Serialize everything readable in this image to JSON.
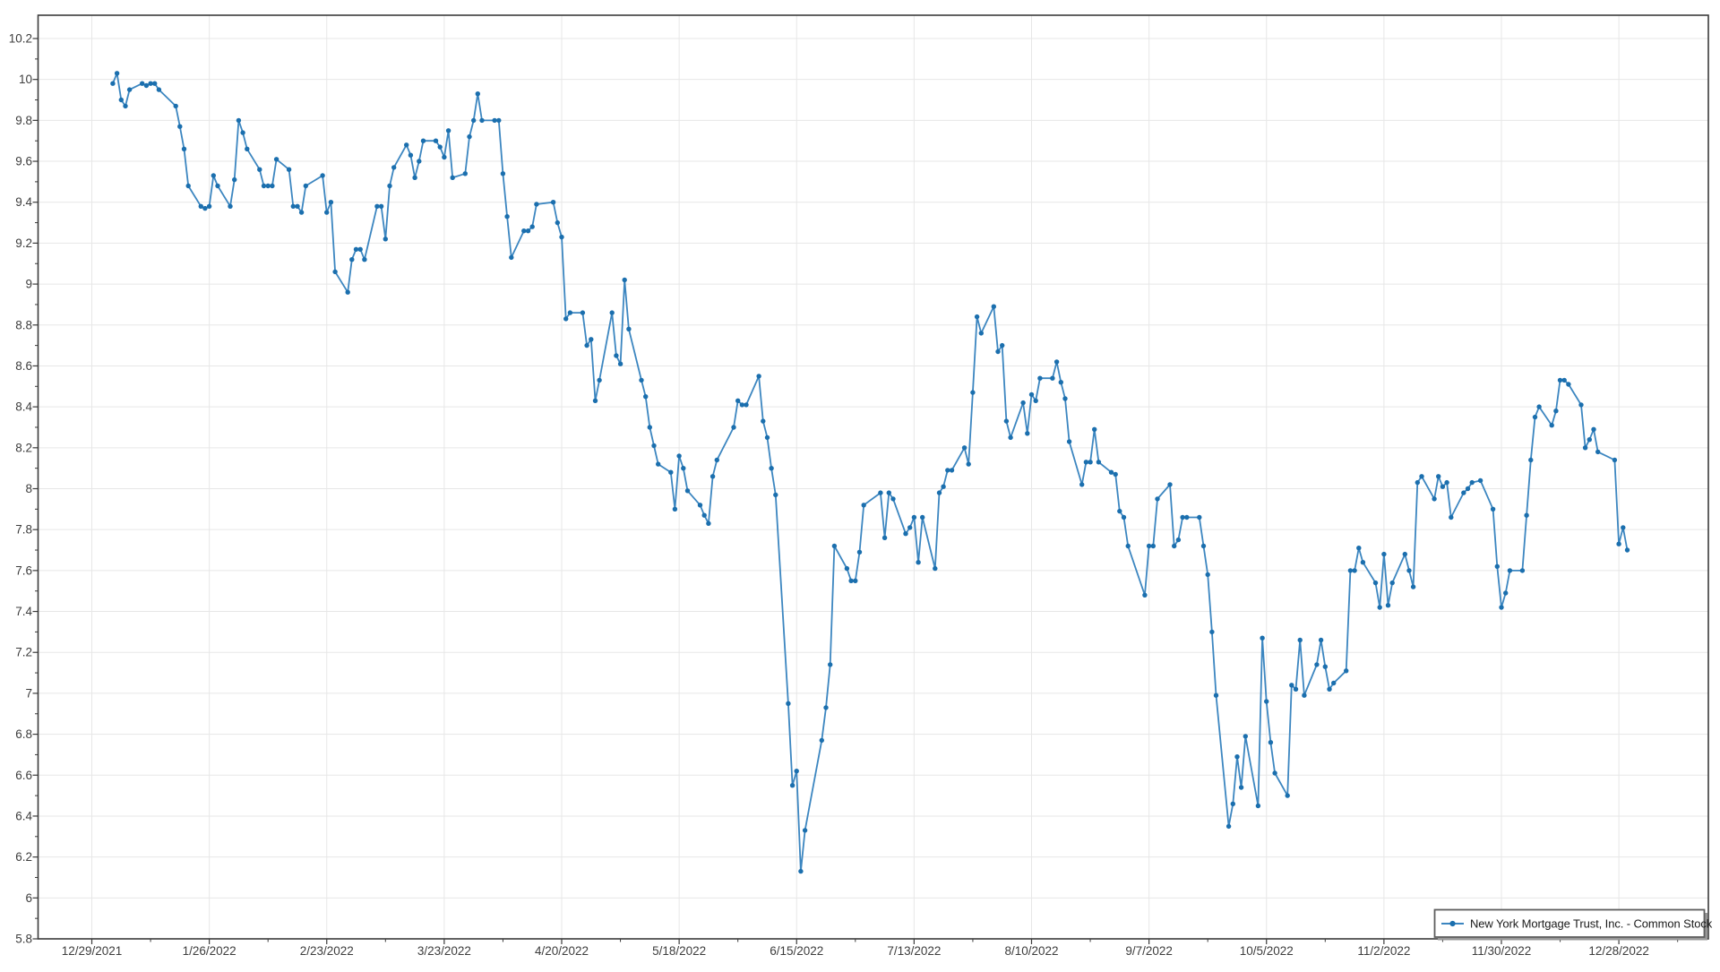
{
  "chart_data": {
    "type": "line",
    "title": "",
    "legend_position": "bottom-right",
    "grid": true,
    "series": [
      {
        "name": "New York Mortgage Trust, Inc. - Common Stock",
        "dates": [
          "1/3",
          "1/4",
          "1/5",
          "1/6",
          "1/7",
          "1/10",
          "1/11",
          "1/12",
          "1/13",
          "1/14",
          "1/18",
          "1/19",
          "1/20",
          "1/21",
          "1/24",
          "1/25",
          "1/26",
          "1/27",
          "1/28",
          "1/31",
          "2/1",
          "2/2",
          "2/3",
          "2/4",
          "2/7",
          "2/8",
          "2/9",
          "2/10",
          "2/11",
          "2/14",
          "2/15",
          "2/16",
          "2/17",
          "2/18",
          "2/22",
          "2/23",
          "2/24",
          "2/25",
          "2/28",
          "3/1",
          "3/2",
          "3/3",
          "3/4",
          "3/7",
          "3/8",
          "3/9",
          "3/10",
          "3/11",
          "3/14",
          "3/15",
          "3/16",
          "3/17",
          "3/18",
          "3/21",
          "3/22",
          "3/23",
          "3/24",
          "3/25",
          "3/28",
          "3/29",
          "3/30",
          "3/31",
          "4/1",
          "4/4",
          "4/5",
          "4/6",
          "4/7",
          "4/8",
          "4/11",
          "4/12",
          "4/13",
          "4/14",
          "4/18",
          "4/19",
          "4/20",
          "4/21",
          "4/22",
          "4/25",
          "4/26",
          "4/27",
          "4/28",
          "4/29",
          "5/2",
          "5/3",
          "5/4",
          "5/5",
          "5/6",
          "5/9",
          "5/10",
          "5/11",
          "5/12",
          "5/13",
          "5/16",
          "5/17",
          "5/18",
          "5/19",
          "5/20",
          "5/23",
          "5/24",
          "5/25",
          "5/26",
          "5/27",
          "5/31",
          "6/1",
          "6/2",
          "6/3",
          "6/6",
          "6/7",
          "6/8",
          "6/9",
          "6/10",
          "6/13",
          "6/14",
          "6/15",
          "6/16",
          "6/17",
          "6/21",
          "6/22",
          "6/23",
          "6/24",
          "6/27",
          "6/28",
          "6/29",
          "6/30",
          "7/1",
          "7/5",
          "7/6",
          "7/7",
          "7/8",
          "7/11",
          "7/12",
          "7/13",
          "7/14",
          "7/15",
          "7/18",
          "7/19",
          "7/20",
          "7/21",
          "7/22",
          "7/25",
          "7/26",
          "7/27",
          "7/28",
          "7/29",
          "8/1",
          "8/2",
          "8/3",
          "8/4",
          "8/5",
          "8/8",
          "8/9",
          "8/10",
          "8/11",
          "8/12",
          "8/15",
          "8/16",
          "8/17",
          "8/18",
          "8/19",
          "8/22",
          "8/23",
          "8/24",
          "8/25",
          "8/26",
          "8/29",
          "8/30",
          "8/31",
          "9/1",
          "9/2",
          "9/6",
          "9/7",
          "9/8",
          "9/9",
          "9/12",
          "9/13",
          "9/14",
          "9/15",
          "9/16",
          "9/19",
          "9/20",
          "9/21",
          "9/22",
          "9/23",
          "9/26",
          "9/27",
          "9/28",
          "9/29",
          "9/30",
          "10/3",
          "10/4",
          "10/5",
          "10/6",
          "10/7",
          "10/10",
          "10/11",
          "10/12",
          "10/13",
          "10/14",
          "10/17",
          "10/18",
          "10/19",
          "10/20",
          "10/21",
          "10/24",
          "10/25",
          "10/26",
          "10/27",
          "10/28",
          "10/31",
          "11/1",
          "11/2",
          "11/3",
          "11/4",
          "11/7",
          "11/8",
          "11/9",
          "11/10",
          "11/11",
          "11/14",
          "11/15",
          "11/16",
          "11/17",
          "11/18",
          "11/21",
          "11/22",
          "11/23",
          "11/25",
          "11/28",
          "11/29",
          "11/30",
          "12/1",
          "12/2",
          "12/5",
          "12/6",
          "12/7",
          "12/8",
          "12/9",
          "12/12",
          "12/13",
          "12/14",
          "12/15",
          "12/16",
          "12/19",
          "12/20",
          "12/21",
          "12/22",
          "12/23",
          "12/27",
          "12/28",
          "12/29",
          "12/30"
        ],
        "values": [
          9.98,
          10.03,
          9.9,
          9.87,
          9.95,
          9.98,
          9.97,
          9.98,
          9.98,
          9.95,
          9.87,
          9.77,
          9.66,
          9.48,
          9.38,
          9.37,
          9.38,
          9.53,
          9.48,
          9.38,
          9.51,
          9.8,
          9.74,
          9.66,
          9.56,
          9.48,
          9.48,
          9.48,
          9.61,
          9.56,
          9.38,
          9.38,
          9.35,
          9.48,
          9.53,
          9.35,
          9.4,
          9.06,
          8.96,
          9.12,
          9.17,
          9.17,
          9.12,
          9.38,
          9.38,
          9.22,
          9.48,
          9.57,
          9.68,
          9.63,
          9.52,
          9.6,
          9.7,
          9.7,
          9.67,
          9.62,
          9.75,
          9.52,
          9.54,
          9.72,
          9.8,
          9.93,
          9.8,
          9.8,
          9.8,
          9.54,
          9.33,
          9.13,
          9.26,
          9.26,
          9.28,
          9.39,
          9.4,
          9.3,
          9.23,
          8.83,
          8.86,
          8.86,
          8.7,
          8.73,
          8.43,
          8.53,
          8.86,
          8.65,
          8.61,
          9.02,
          8.78,
          8.53,
          8.45,
          8.3,
          8.21,
          8.12,
          8.08,
          7.9,
          8.16,
          8.1,
          7.99,
          7.92,
          7.87,
          7.83,
          8.06,
          8.14,
          8.3,
          8.43,
          8.41,
          8.41,
          8.55,
          8.33,
          8.25,
          8.1,
          7.97,
          6.95,
          6.55,
          6.62,
          6.13,
          6.33,
          6.77,
          6.93,
          7.14,
          7.72,
          7.61,
          7.55,
          7.55,
          7.69,
          7.92,
          7.98,
          7.76,
          7.98,
          7.95,
          7.78,
          7.81,
          7.86,
          7.64,
          7.86,
          7.61,
          7.98,
          8.01,
          8.09,
          8.09,
          8.2,
          8.12,
          8.47,
          8.84,
          8.76,
          8.89,
          8.67,
          8.7,
          8.33,
          8.25,
          8.42,
          8.27,
          8.46,
          8.43,
          8.54,
          8.54,
          8.62,
          8.52,
          8.44,
          8.23,
          8.02,
          8.13,
          8.13,
          8.29,
          8.13,
          8.08,
          8.07,
          7.89,
          7.86,
          7.72,
          7.48,
          7.72,
          7.72,
          7.95,
          8.02,
          7.72,
          7.75,
          7.86,
          7.86,
          7.86,
          7.72,
          7.58,
          7.3,
          6.99,
          6.35,
          6.46,
          6.69,
          6.54,
          6.79,
          6.45,
          7.27,
          6.96,
          6.76,
          6.61,
          6.5,
          7.04,
          7.02,
          7.26,
          6.99,
          7.14,
          7.26,
          7.13,
          7.02,
          7.05,
          7.11,
          7.6,
          7.6,
          7.71,
          7.64,
          7.54,
          7.42,
          7.68,
          7.43,
          7.54,
          7.68,
          7.6,
          7.52,
          8.03,
          8.06,
          7.95,
          8.06,
          8.01,
          8.03,
          7.86,
          7.98,
          8.0,
          8.03,
          8.04,
          7.9,
          7.62,
          7.42,
          7.49,
          7.6,
          7.6,
          7.87,
          8.14,
          8.35,
          8.4,
          8.31,
          8.38,
          8.53,
          8.53,
          8.51,
          8.41,
          8.2,
          8.24,
          8.29,
          8.18,
          8.14,
          7.73,
          7.81,
          7.7
        ]
      }
    ],
    "x_axis": {
      "start_date": "12/29/2021",
      "major_tick_interval_days": 28,
      "minor_tick_interval_days": 14,
      "labels": [
        "12/29/2021",
        "1/26/2022",
        "2/23/2022",
        "3/23/2022",
        "4/20/2022",
        "5/18/2022",
        "6/15/2022",
        "7/13/2022",
        "8/10/2022",
        "9/7/2022",
        "10/5/2022",
        "11/2/2022",
        "11/30/2022",
        "12/28/2022"
      ]
    },
    "y_axis": {
      "min": 5.8,
      "max": 10.2,
      "major_step": 0.2,
      "minor_step": 0.1,
      "labels": [
        "5.8",
        "6",
        "6.2",
        "6.4",
        "6.6",
        "6.8",
        "7",
        "7.2",
        "7.4",
        "7.6",
        "7.8",
        "8",
        "8.2",
        "8.4",
        "8.6",
        "8.8",
        "9",
        "9.2",
        "9.4",
        "9.6",
        "9.8",
        "10",
        "10.2"
      ]
    },
    "colors": {
      "line": "#3c86c0",
      "marker": "#1b6fae",
      "gridline": "#e7e7e7",
      "axis": "#3b3b3b",
      "tick_label": "#3d3d3d",
      "background": "#ffffff",
      "legend_border": "#5e5e5e",
      "legend_shadow": "#989898",
      "legend_background": "#ffffff"
    }
  },
  "legend": {
    "label": "New York Mortgage Trust, Inc. - Common Stock"
  }
}
